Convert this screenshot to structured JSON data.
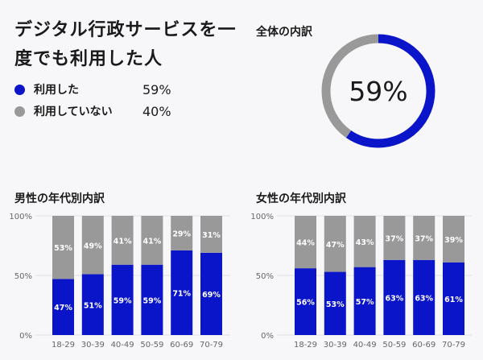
{
  "headline": "デジタル行政サービスを一度でも利用した人",
  "legend": [
    {
      "label": "利用した",
      "value": "59%",
      "color": "#0a14c8"
    },
    {
      "label": "利用していない",
      "value": "40%",
      "color": "#999999"
    }
  ],
  "overall": {
    "title": "全体の内訳",
    "center_text": "59%"
  },
  "colors": {
    "used": "#0a14c8",
    "not_used": "#999999"
  },
  "chart_data": [
    {
      "type": "pie",
      "title": "全体の内訳",
      "labels": [
        "利用した",
        "利用していない"
      ],
      "values": [
        59,
        40
      ]
    },
    {
      "type": "bar",
      "stacked": true,
      "title": "男性の年代別内訳",
      "categories": [
        "18-29",
        "30-39",
        "40-49",
        "50-59",
        "60-69",
        "70-79"
      ],
      "series": [
        {
          "name": "利用した",
          "values": [
            47,
            51,
            59,
            59,
            71,
            69
          ],
          "labels": [
            "47%",
            "51%",
            "59%",
            "59%",
            "71%",
            "69%"
          ]
        },
        {
          "name": "利用していない",
          "values": [
            53,
            49,
            41,
            41,
            29,
            31
          ],
          "labels": [
            "53%",
            "49%",
            "41%",
            "41%",
            "29%",
            "31%"
          ]
        }
      ],
      "yticks": [
        "0%",
        "50%",
        "100%"
      ],
      "ylim": [
        0,
        100
      ],
      "grid": true
    },
    {
      "type": "bar",
      "stacked": true,
      "title": "女性の年代別内訳",
      "categories": [
        "18-29",
        "30-39",
        "40-49",
        "50-59",
        "60-69",
        "70-79"
      ],
      "series": [
        {
          "name": "利用した",
          "values": [
            56,
            53,
            57,
            63,
            63,
            61
          ],
          "labels": [
            "56%",
            "53%",
            "57%",
            "63%",
            "63%",
            "61%"
          ]
        },
        {
          "name": "利用していない",
          "values": [
            44,
            47,
            43,
            37,
            37,
            39
          ],
          "labels": [
            "44%",
            "47%",
            "43%",
            "37%",
            "37%",
            "39%"
          ]
        }
      ],
      "yticks": [
        "0%",
        "50%",
        "100%"
      ],
      "ylim": [
        0,
        100
      ],
      "grid": true
    }
  ]
}
